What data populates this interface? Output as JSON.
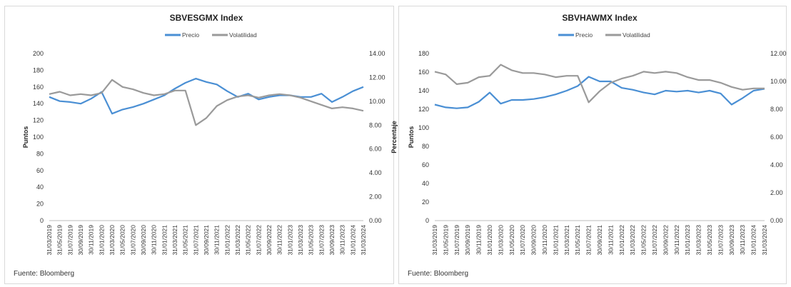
{
  "source_note": "Fuente: Bloomberg",
  "chart_data": [
    {
      "type": "line",
      "title": "SBVESGMX Index",
      "ylabel": "Puntos",
      "y2label": "Percentaje",
      "ylim": [
        0,
        200
      ],
      "yticks": [
        "0",
        "20",
        "40",
        "60",
        "80",
        "100",
        "120",
        "140",
        "160",
        "180",
        "200"
      ],
      "y2lim": [
        0,
        14
      ],
      "y2ticks": [
        "0.00",
        "2.00",
        "4.00",
        "6.00",
        "8.00",
        "10.00",
        "12.00",
        "14.00"
      ],
      "legend": [
        "Precio",
        "Volatilidad"
      ],
      "colors": {
        "Precio": "#4a8fd4",
        "Volatilidad": "#9a9a9a"
      },
      "x": [
        "31/03/2019",
        "31/05/2019",
        "31/07/2019",
        "30/09/2019",
        "30/11/2019",
        "31/01/2020",
        "31/03/2020",
        "31/05/2020",
        "31/07/2020",
        "30/09/2020",
        "30/11/2020",
        "31/01/2021",
        "31/03/2021",
        "31/05/2021",
        "31/07/2021",
        "30/09/2021",
        "30/11/2021",
        "31/01/2022",
        "31/03/2022",
        "31/05/2022",
        "31/07/2022",
        "30/09/2022",
        "30/11/2022",
        "31/01/2023",
        "31/03/2023",
        "31/05/2023",
        "31/07/2023",
        "30/09/2023",
        "30/11/2023",
        "31/01/2024",
        "31/03/2024"
      ],
      "series": [
        {
          "name": "Precio",
          "axis": "left",
          "values": [
            148,
            143,
            142,
            140,
            146,
            154,
            128,
            133,
            136,
            140,
            145,
            150,
            158,
            165,
            170,
            166,
            163,
            155,
            148,
            152,
            145,
            148,
            150,
            150,
            148,
            148,
            152,
            142,
            148,
            155,
            160
          ]
        },
        {
          "name": "Volatilidad",
          "axis": "right",
          "values": [
            10.6,
            10.8,
            10.5,
            10.6,
            10.5,
            10.7,
            11.8,
            11.2,
            11.0,
            10.7,
            10.5,
            10.6,
            10.9,
            10.9,
            8.0,
            8.6,
            9.6,
            10.1,
            10.4,
            10.5,
            10.3,
            10.5,
            10.6,
            10.5,
            10.3,
            10.0,
            9.7,
            9.4,
            9.5,
            9.4,
            9.2
          ]
        }
      ]
    },
    {
      "type": "line",
      "title": "SBVHAWMX Index",
      "ylabel": "Puntos",
      "ylim": [
        0,
        180
      ],
      "yticks": [
        "0",
        "20",
        "40",
        "60",
        "80",
        "100",
        "120",
        "140",
        "160",
        "180"
      ],
      "y2lim": [
        0,
        12
      ],
      "y2ticks": [
        "0.00",
        "2.00",
        "4.00",
        "6.00",
        "8.00",
        "10.00",
        "12.00"
      ],
      "legend": [
        "Precio",
        "Volatilidad"
      ],
      "colors": {
        "Precio": "#4a8fd4",
        "Volatilidad": "#9a9a9a"
      },
      "x": [
        "31/03/2019",
        "31/05/2019",
        "31/07/2019",
        "30/09/2019",
        "30/11/2019",
        "31/01/2020",
        "31/03/2020",
        "31/05/2020",
        "31/07/2020",
        "30/09/2020",
        "30/11/2020",
        "31/01/2021",
        "31/03/2021",
        "31/05/2021",
        "31/07/2021",
        "30/09/2021",
        "30/11/2021",
        "31/01/2022",
        "31/03/2022",
        "31/05/2022",
        "31/07/2022",
        "30/09/2022",
        "30/11/2022",
        "31/01/2023",
        "31/03/2023",
        "31/05/2023",
        "31/07/2023",
        "30/09/2023",
        "30/11/2023",
        "31/01/2024",
        "31/03/2024"
      ],
      "series": [
        {
          "name": "Precio",
          "axis": "left",
          "values": [
            125,
            122,
            121,
            122,
            128,
            138,
            126,
            130,
            130,
            131,
            133,
            136,
            140,
            145,
            155,
            150,
            150,
            143,
            141,
            138,
            136,
            140,
            139,
            140,
            138,
            140,
            137,
            125,
            132,
            140,
            142
          ]
        },
        {
          "name": "Volatilidad",
          "axis": "right",
          "values": [
            10.7,
            10.5,
            9.8,
            9.9,
            10.3,
            10.4,
            11.2,
            10.8,
            10.6,
            10.6,
            10.5,
            10.3,
            10.4,
            10.4,
            8.5,
            9.3,
            9.9,
            10.2,
            10.4,
            10.7,
            10.6,
            10.7,
            10.6,
            10.3,
            10.1,
            10.1,
            9.9,
            9.6,
            9.4,
            9.5,
            9.5
          ]
        }
      ]
    }
  ]
}
